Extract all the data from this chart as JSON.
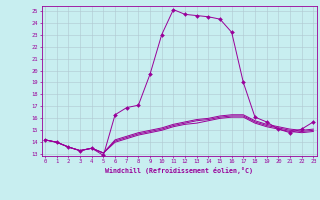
{
  "xlabel": "Windchill (Refroidissement éolien,°C)",
  "x_ticks": [
    0,
    1,
    2,
    3,
    4,
    5,
    6,
    7,
    8,
    9,
    10,
    11,
    12,
    13,
    14,
    15,
    16,
    17,
    18,
    19,
    20,
    21,
    22,
    23
  ],
  "yticks": [
    13,
    14,
    15,
    16,
    17,
    18,
    19,
    20,
    21,
    22,
    23,
    24,
    25
  ],
  "line_color": "#990099",
  "bg_color": "#c8eef0",
  "grid_color": "#b0c8d0",
  "lines": [
    [
      14.2,
      14.0,
      13.6,
      13.3,
      13.5,
      12.9,
      16.3,
      16.9,
      17.1,
      19.7,
      23.0,
      25.1,
      24.7,
      24.6,
      24.5,
      24.3,
      23.2,
      19.0,
      16.1,
      15.7,
      15.1,
      14.8,
      15.1,
      15.7
    ],
    [
      14.2,
      14.0,
      13.6,
      13.3,
      13.5,
      13.1,
      14.2,
      14.5,
      14.8,
      15.0,
      15.2,
      15.5,
      15.7,
      15.9,
      16.0,
      16.2,
      16.3,
      16.3,
      15.8,
      15.5,
      15.3,
      15.1,
      15.0,
      15.1
    ],
    [
      14.2,
      14.0,
      13.6,
      13.3,
      13.5,
      13.1,
      14.0,
      14.3,
      14.6,
      14.8,
      15.0,
      15.3,
      15.5,
      15.6,
      15.8,
      16.0,
      16.1,
      16.1,
      15.6,
      15.3,
      15.1,
      14.9,
      14.8,
      14.9
    ],
    [
      14.2,
      14.0,
      13.6,
      13.3,
      13.5,
      13.1,
      14.1,
      14.4,
      14.7,
      14.9,
      15.1,
      15.4,
      15.6,
      15.8,
      15.9,
      16.1,
      16.2,
      16.2,
      15.7,
      15.4,
      15.2,
      15.0,
      14.9,
      15.0
    ]
  ]
}
